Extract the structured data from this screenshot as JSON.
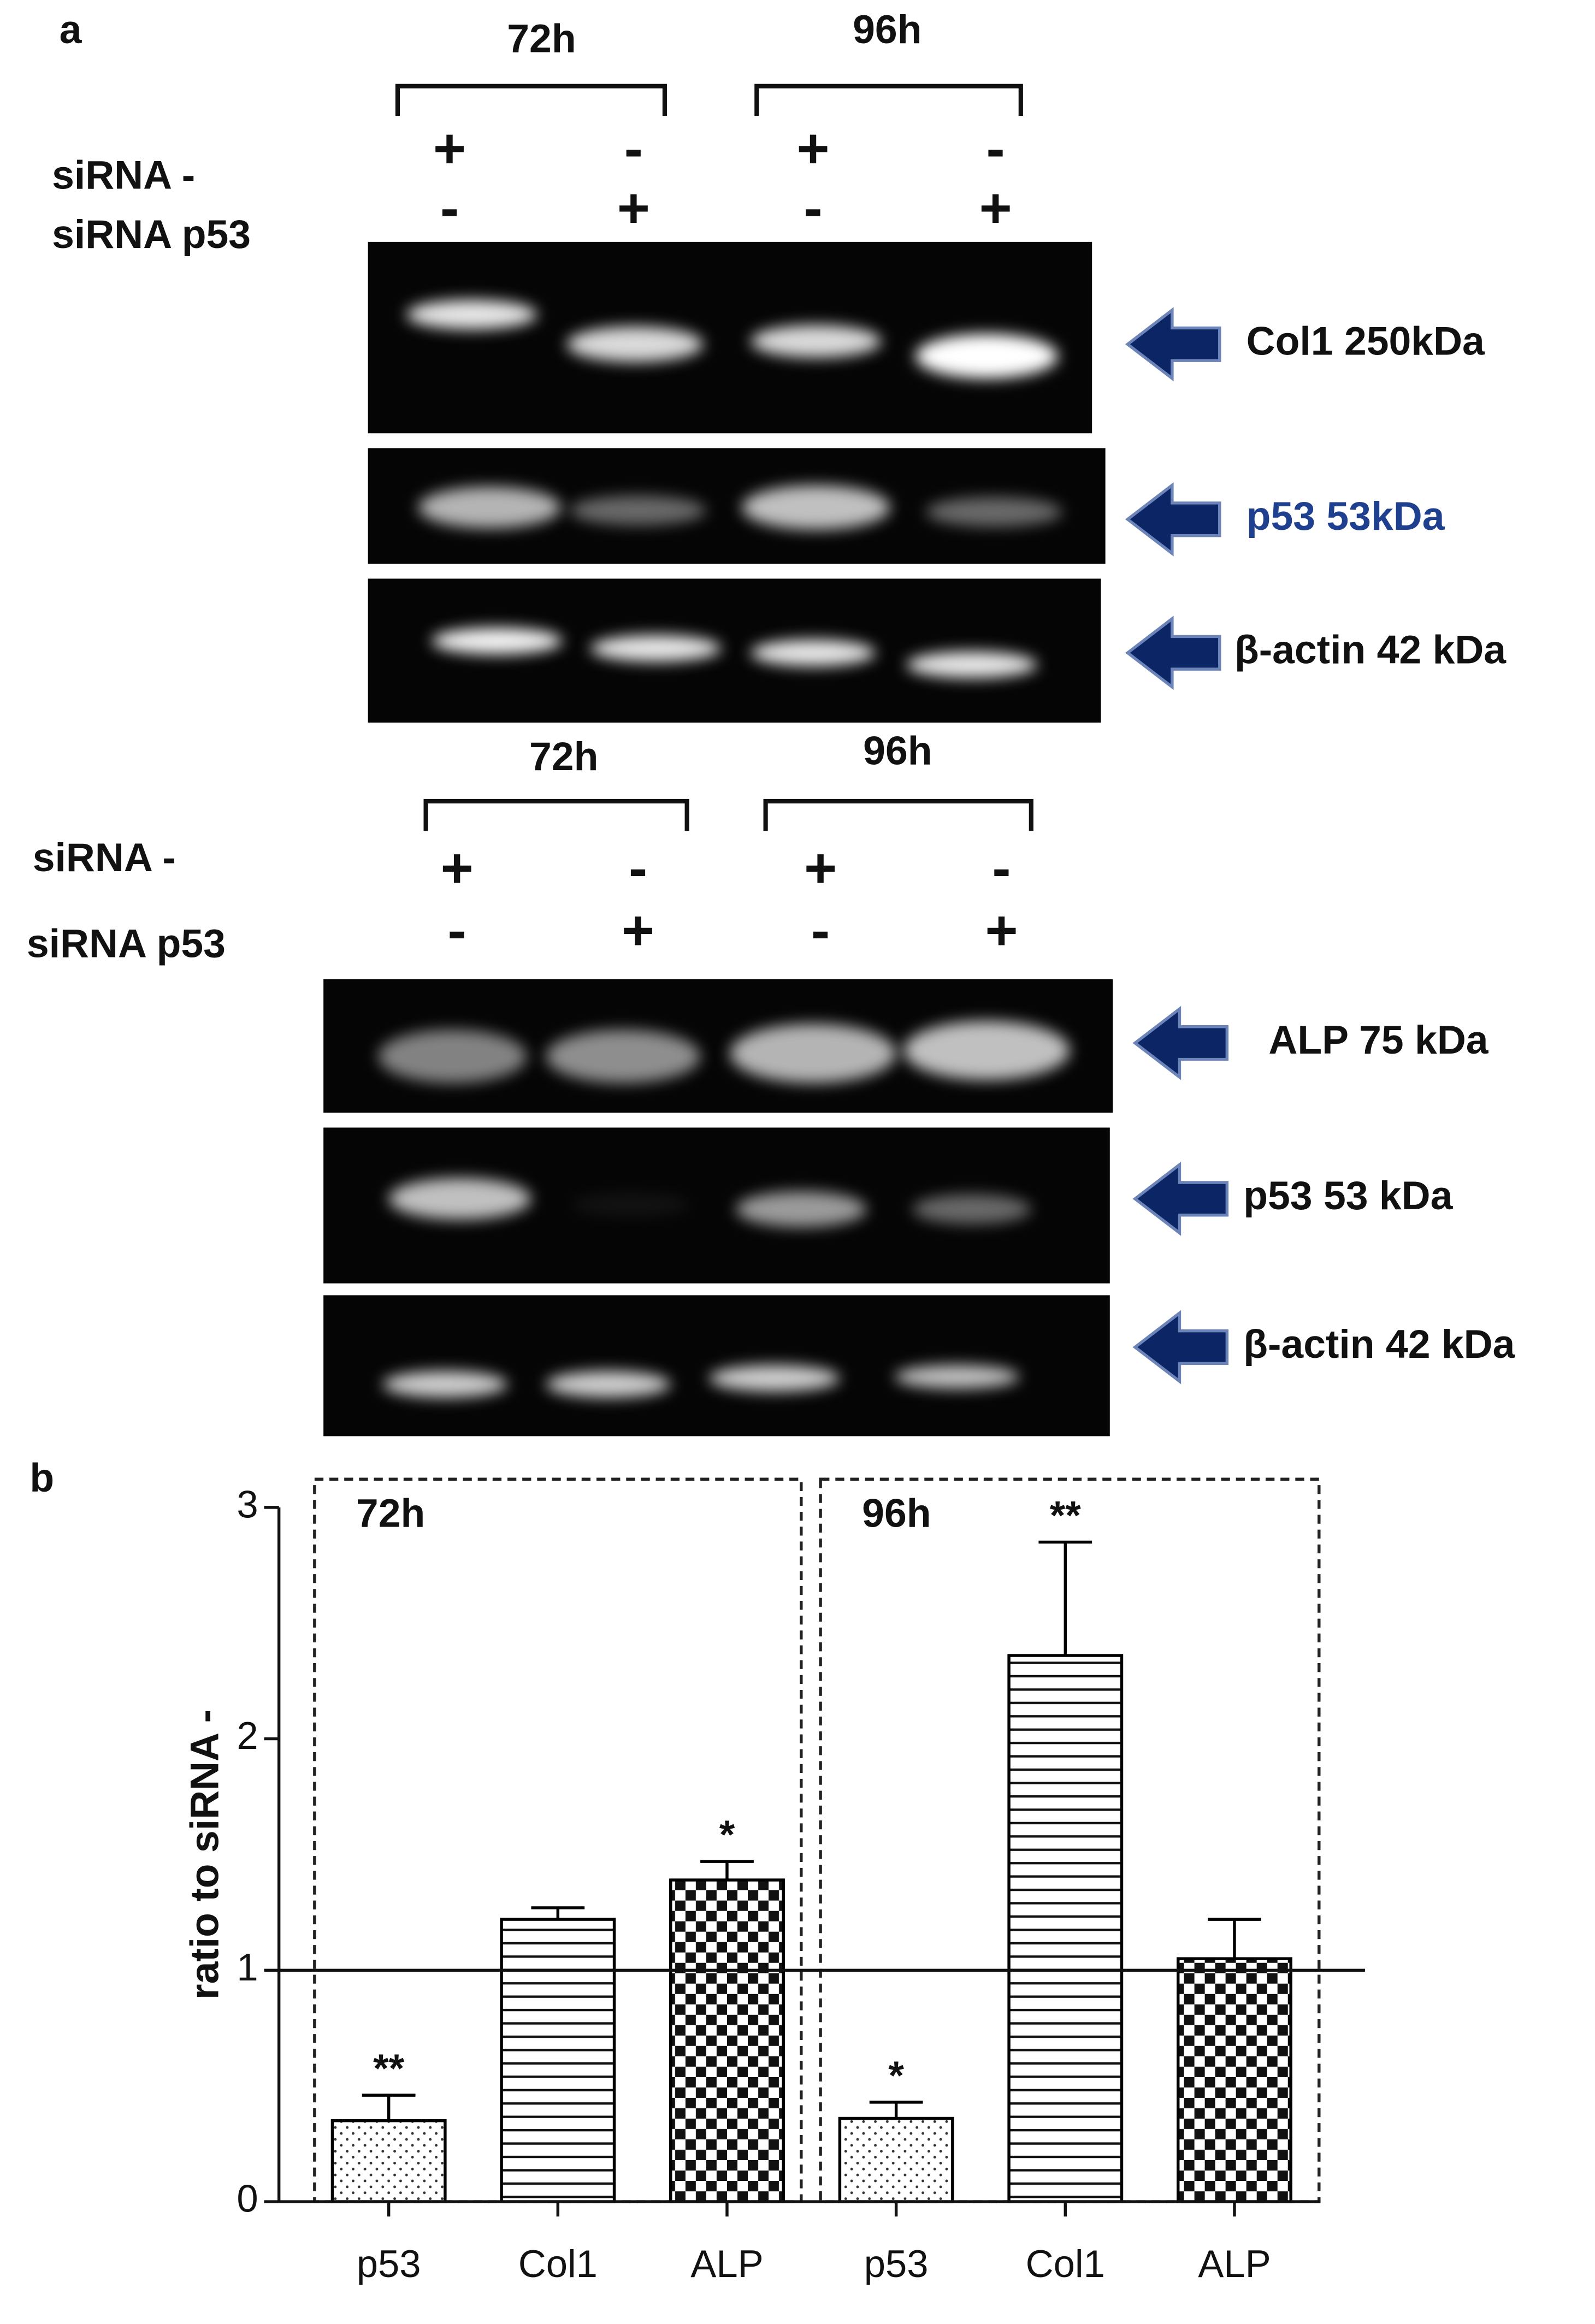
{
  "panel_a": {
    "label": "a",
    "blots": [
      {
        "time_points": [
          "72h",
          "96h"
        ],
        "row_labels": [
          "siRNA -",
          "siRNA p53"
        ],
        "sirna_control": [
          "+",
          "-",
          "+",
          "-"
        ],
        "sirna_p53": [
          "-",
          "+",
          "-",
          "+"
        ],
        "bands": [
          "Col1 250kDa",
          "p53 53kDa",
          "β-actin 42 kDa"
        ]
      },
      {
        "time_points": [
          "72h",
          "96h"
        ],
        "row_labels": [
          "siRNA -",
          "siRNA p53"
        ],
        "sirna_control": [
          "+",
          "-",
          "+",
          "-"
        ],
        "sirna_p53": [
          "-",
          "+",
          "-",
          "+"
        ],
        "bands": [
          "ALP 75 kDa",
          "p53 53 kDa",
          "β-actin 42 kDa"
        ]
      }
    ]
  },
  "chart_data": {
    "type": "bar",
    "panel_label": "b",
    "ylabel": "ratio to siRNA -",
    "groups": [
      "72h",
      "96h"
    ],
    "categories": [
      "p53",
      "Col1",
      "ALP",
      "p53",
      "Col1",
      "ALP"
    ],
    "values": [
      0.35,
      1.22,
      1.39,
      0.36,
      2.36,
      1.05
    ],
    "errors": [
      0.11,
      0.05,
      0.08,
      0.07,
      0.49,
      0.17
    ],
    "annotations": [
      "**",
      null,
      "*",
      "*",
      "**",
      null
    ],
    "patterns": [
      "dots",
      "hlines",
      "checker",
      "dots",
      "hlines",
      "checker"
    ],
    "color": "#000000",
    "ylim": [
      0,
      3
    ],
    "yticks": [
      0,
      1,
      2,
      3
    ],
    "reference_line": 1
  }
}
